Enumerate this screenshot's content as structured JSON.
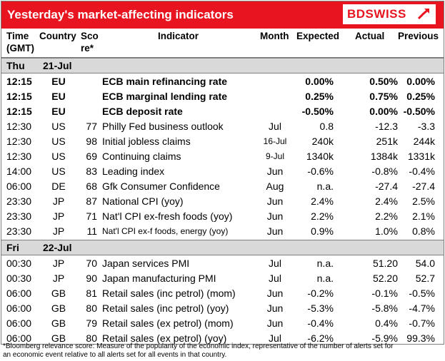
{
  "title": "Yesterday's market-affecting indicators",
  "logo": "BDSWISS",
  "headers": {
    "time1": "Time",
    "time2": "(GMT)",
    "country": "Country",
    "score1": "Sco",
    "score2": "re*",
    "indicator": "Indicator",
    "month": "Month",
    "expected": "Expected",
    "actual": "Actual",
    "previous": "Previous"
  },
  "sections": [
    {
      "day": "Thu",
      "date": "21-Jul",
      "rows": [
        {
          "time": "12:15",
          "country": "EU",
          "score": "",
          "indicator": "ECB main refinancing rate",
          "month": "",
          "expected": "0.00%",
          "actual": "0.50%",
          "previous": "0.00%",
          "bold": true
        },
        {
          "time": "12:15",
          "country": "EU",
          "score": "",
          "indicator": "ECB marginal lending rate",
          "month": "",
          "expected": "0.25%",
          "actual": "0.75%",
          "previous": "0.25%",
          "bold": true
        },
        {
          "time": "12:15",
          "country": "EU",
          "score": "",
          "indicator": "ECB deposit rate",
          "month": "",
          "expected": "-0.50%",
          "actual": "0.00%",
          "previous": "-0.50%",
          "bold": true
        },
        {
          "time": "12:30",
          "country": "US",
          "score": "77",
          "indicator": "Philly Fed business outlook",
          "month": "Jul",
          "expected": "0.8",
          "actual": "-12.3",
          "previous": "-3.3"
        },
        {
          "time": "12:30",
          "country": "US",
          "score": "98",
          "indicator": "Initial jobless claims",
          "month": "16-Jul",
          "expected": "240k",
          "actual": "251k",
          "previous": "244k",
          "month_small": true
        },
        {
          "time": "12:30",
          "country": "US",
          "score": "69",
          "indicator": "Continuing claims",
          "month": "9-Jul",
          "expected": "1340k",
          "actual": "1384k",
          "previous": "1331k",
          "month_small": true
        },
        {
          "time": "14:00",
          "country": "US",
          "score": "83",
          "indicator": "Leading index",
          "month": "Jun",
          "expected": "-0.6%",
          "actual": "-0.8%",
          "previous": "-0.4%"
        },
        {
          "time": "06:00",
          "country": "DE",
          "score": "68",
          "indicator": "Gfk Consumer Confidence",
          "month": "Aug",
          "expected": "n.a.",
          "actual": "-27.4",
          "previous": "-27.4"
        },
        {
          "time": "23:30",
          "country": "JP",
          "score": "87",
          "indicator": "National CPI (yoy)",
          "month": "Jun",
          "expected": "2.4%",
          "actual": "2.4%",
          "previous": "2.5%"
        },
        {
          "time": "23:30",
          "country": "JP",
          "score": "71",
          "indicator": "Nat'l CPI ex-fresh foods (yoy)",
          "month": "Jun",
          "expected": "2.2%",
          "actual": "2.2%",
          "previous": "2.1%"
        },
        {
          "time": "23:30",
          "country": "JP",
          "score": "11",
          "indicator": "Nat'l CPI ex-f foods, energy (yoy)",
          "month": "Jun",
          "expected": "0.9%",
          "actual": "1.0%",
          "previous": "0.8%",
          "ind_small": true
        }
      ]
    },
    {
      "day": "Fri",
      "date": "22-Jul",
      "rows": [
        {
          "time": "00:30",
          "country": "JP",
          "score": "70",
          "indicator": "Japan services PMI",
          "month": "Jul",
          "expected": "n.a.",
          "actual": "51.20",
          "previous": "54.0"
        },
        {
          "time": "00:30",
          "country": "JP",
          "score": "90",
          "indicator": "Japan manufacturing PMI",
          "month": "Jul",
          "expected": "n.a.",
          "actual": "52.20",
          "previous": "52.7"
        },
        {
          "time": "06:00",
          "country": "GB",
          "score": "81",
          "indicator": "Retail sales (inc petrol) (mom)",
          "month": "Jun",
          "expected": "-0.2%",
          "actual": "-0.1%",
          "previous": "-0.5%"
        },
        {
          "time": "06:00",
          "country": "GB",
          "score": "80",
          "indicator": "Retail sales (inc petrol) (yoy)",
          "month": "Jun",
          "expected": "-5.3%",
          "actual": "-5.8%",
          "previous": "-4.7%"
        },
        {
          "time": "06:00",
          "country": "GB",
          "score": "79",
          "indicator": "Retail sales (ex petrol) (mom)",
          "month": "Jun",
          "expected": "-0.4%",
          "actual": "0.4%",
          "previous": "-0.7%"
        },
        {
          "time": "06:00",
          "country": "GB",
          "score": "80",
          "indicator": "Retail sales (ex petrol) (yoy)",
          "month": "Jul",
          "expected": "-6.2%",
          "actual": "-5.9%",
          "previous": "99.3%"
        }
      ]
    }
  ],
  "footnote": "*Bloomberg relevance score: Measure of the popularity of the economic index, representative of the number of alerts set for an economic event relative to all alerts set for all events in that country.",
  "colors": {
    "brand": "#e8141f",
    "section_bg": "#d9d9d9"
  }
}
